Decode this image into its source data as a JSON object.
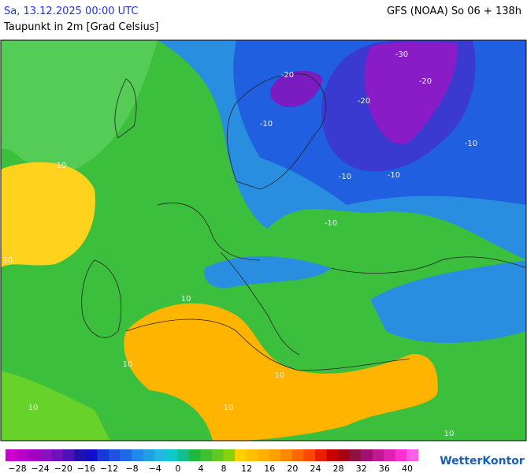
{
  "header": {
    "date": "Sa, 13.12.2025 00:00 UTC",
    "variable": "Taupunkt in 2m [Grad Celsius]",
    "model": "GFS (NOAA) So 06 + 138h"
  },
  "map_labels": [
    "-30",
    "-20",
    "-20",
    "-20",
    "-10",
    "-10",
    "-10",
    "-10",
    "-10",
    "10",
    "10",
    "10",
    "10",
    "10",
    "10",
    "10",
    "10"
  ],
  "legend": {
    "colors": [
      "#cc00cc",
      "#b800c8",
      "#a400c4",
      "#8c10c0",
      "#7010c0",
      "#5010b8",
      "#2010b0",
      "#1010c8",
      "#1838d8",
      "#2050e0",
      "#2068e8",
      "#2088e8",
      "#20a0e0",
      "#20b8e0",
      "#10c8c8",
      "#10c090",
      "#20b840",
      "#40c030",
      "#60c820",
      "#88d010",
      "#ffd000",
      "#ffc000",
      "#ffb000",
      "#ffa000",
      "#ff8800",
      "#ff6800",
      "#ff4800",
      "#e82000",
      "#c80000",
      "#a80010",
      "#901040",
      "#a01070",
      "#c01890",
      "#e020b0",
      "#ff30d0",
      "#ff60e8"
    ],
    "ticks": [
      "−28",
      "−24",
      "−20",
      "−16",
      "−12",
      "−8",
      "−4",
      "0",
      "4",
      "8",
      "12",
      "16",
      "20",
      "24",
      "28",
      "32",
      "36",
      "40"
    ]
  },
  "footer": {
    "logo": "WetterKontor"
  }
}
